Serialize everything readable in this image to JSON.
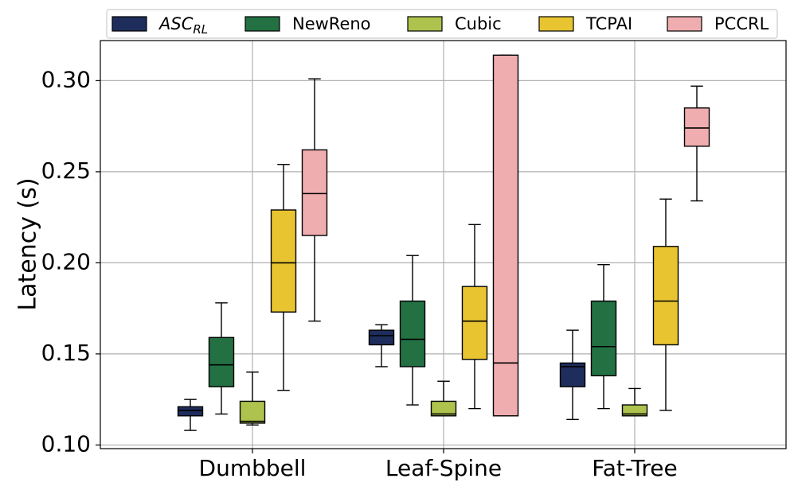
{
  "chart_data": {
    "type": "box",
    "ylabel": "Latency (s)",
    "ylim": [
      0.098,
      0.322
    ],
    "yticks": [
      0.1,
      0.15,
      0.2,
      0.25,
      0.3
    ],
    "ytick_labels": [
      "0.10",
      "0.15",
      "0.20",
      "0.25",
      "0.30"
    ],
    "categories": [
      "Dumbbell",
      "Leaf-Spine",
      "Fat-Tree"
    ],
    "grid": true,
    "legend_position": "top",
    "series": [
      {
        "name": "ASC",
        "name_sub": "RL",
        "color": "#1f2d5c",
        "boxes": [
          {
            "whislo": 0.108,
            "q1": 0.116,
            "med": 0.119,
            "q3": 0.121,
            "whishi": 0.125
          },
          {
            "whislo": 0.143,
            "q1": 0.155,
            "med": 0.16,
            "q3": 0.163,
            "whishi": 0.166
          },
          {
            "whislo": 0.114,
            "q1": 0.132,
            "med": 0.143,
            "q3": 0.145,
            "whishi": 0.163
          }
        ]
      },
      {
        "name": "NewReno",
        "color": "#237043",
        "boxes": [
          {
            "whislo": 0.117,
            "q1": 0.132,
            "med": 0.144,
            "q3": 0.159,
            "whishi": 0.178
          },
          {
            "whislo": 0.122,
            "q1": 0.143,
            "med": 0.158,
            "q3": 0.179,
            "whishi": 0.204
          },
          {
            "whislo": 0.12,
            "q1": 0.138,
            "med": 0.154,
            "q3": 0.179,
            "whishi": 0.199
          }
        ]
      },
      {
        "name": "Cubic",
        "color": "#adc34e",
        "boxes": [
          {
            "whislo": 0.111,
            "q1": 0.112,
            "med": 0.113,
            "q3": 0.124,
            "whishi": 0.14
          },
          {
            "whislo": 0.116,
            "q1": 0.116,
            "med": 0.117,
            "q3": 0.124,
            "whishi": 0.135
          },
          {
            "whislo": 0.116,
            "q1": 0.116,
            "med": 0.117,
            "q3": 0.122,
            "whishi": 0.131
          }
        ]
      },
      {
        "name": "TCPAI",
        "color": "#e8c431",
        "boxes": [
          {
            "whislo": 0.13,
            "q1": 0.173,
            "med": 0.2,
            "q3": 0.229,
            "whishi": 0.254
          },
          {
            "whislo": 0.12,
            "q1": 0.147,
            "med": 0.168,
            "q3": 0.187,
            "whishi": 0.221
          },
          {
            "whislo": 0.119,
            "q1": 0.155,
            "med": 0.179,
            "q3": 0.209,
            "whishi": 0.235
          }
        ]
      },
      {
        "name": "PCCRL",
        "color": "#f0adb0",
        "boxes": [
          {
            "whislo": 0.168,
            "q1": 0.215,
            "med": 0.238,
            "q3": 0.262,
            "whishi": 0.301
          },
          {
            "whislo": 0.116,
            "q1": 0.116,
            "med": 0.145,
            "q3": 0.314,
            "whishi": 0.314
          },
          {
            "whislo": 0.234,
            "q1": 0.264,
            "med": 0.274,
            "q3": 0.285,
            "whishi": 0.297
          }
        ]
      }
    ]
  }
}
